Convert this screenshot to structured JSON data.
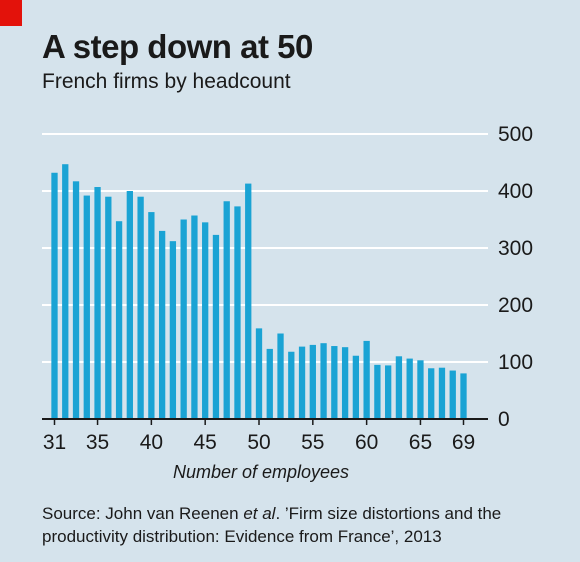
{
  "header": {
    "title": "A step down at 50",
    "subtitle": "French firms by headcount"
  },
  "source": {
    "prefix": "Source: John van Reenen ",
    "etal": "et al",
    "suffix": ". ’Firm size distortions and the productivity distribution: Evidence from France’, 2013"
  },
  "colors": {
    "background": "#d5e3ec",
    "bar": "#1aa3d4",
    "accent": "#e3120b",
    "gridline": "#ffffff"
  },
  "chart_data": {
    "type": "bar",
    "title": "A step down at 50",
    "subtitle": "French firms by headcount",
    "xlabel": "Number of employees",
    "ylabel": "",
    "ylim": [
      0,
      500
    ],
    "yticks": [
      0,
      100,
      200,
      300,
      400,
      500
    ],
    "xtick_labels": [
      "31",
      "35",
      "40",
      "45",
      "50",
      "55",
      "60",
      "65",
      "69"
    ],
    "y_axis_side": "right",
    "grid": true,
    "categories": [
      31,
      32,
      33,
      34,
      35,
      36,
      37,
      38,
      39,
      40,
      41,
      42,
      43,
      44,
      45,
      46,
      47,
      48,
      49,
      50,
      51,
      52,
      53,
      54,
      55,
      56,
      57,
      58,
      59,
      60,
      61,
      62,
      63,
      64,
      65,
      66,
      67,
      68,
      69
    ],
    "values": [
      432,
      447,
      417,
      392,
      407,
      390,
      347,
      400,
      390,
      363,
      330,
      312,
      350,
      357,
      345,
      323,
      382,
      373,
      413,
      159,
      123,
      150,
      118,
      127,
      130,
      133,
      128,
      126,
      111,
      137,
      95,
      94,
      110,
      106,
      103,
      89,
      90,
      85,
      80
    ]
  }
}
